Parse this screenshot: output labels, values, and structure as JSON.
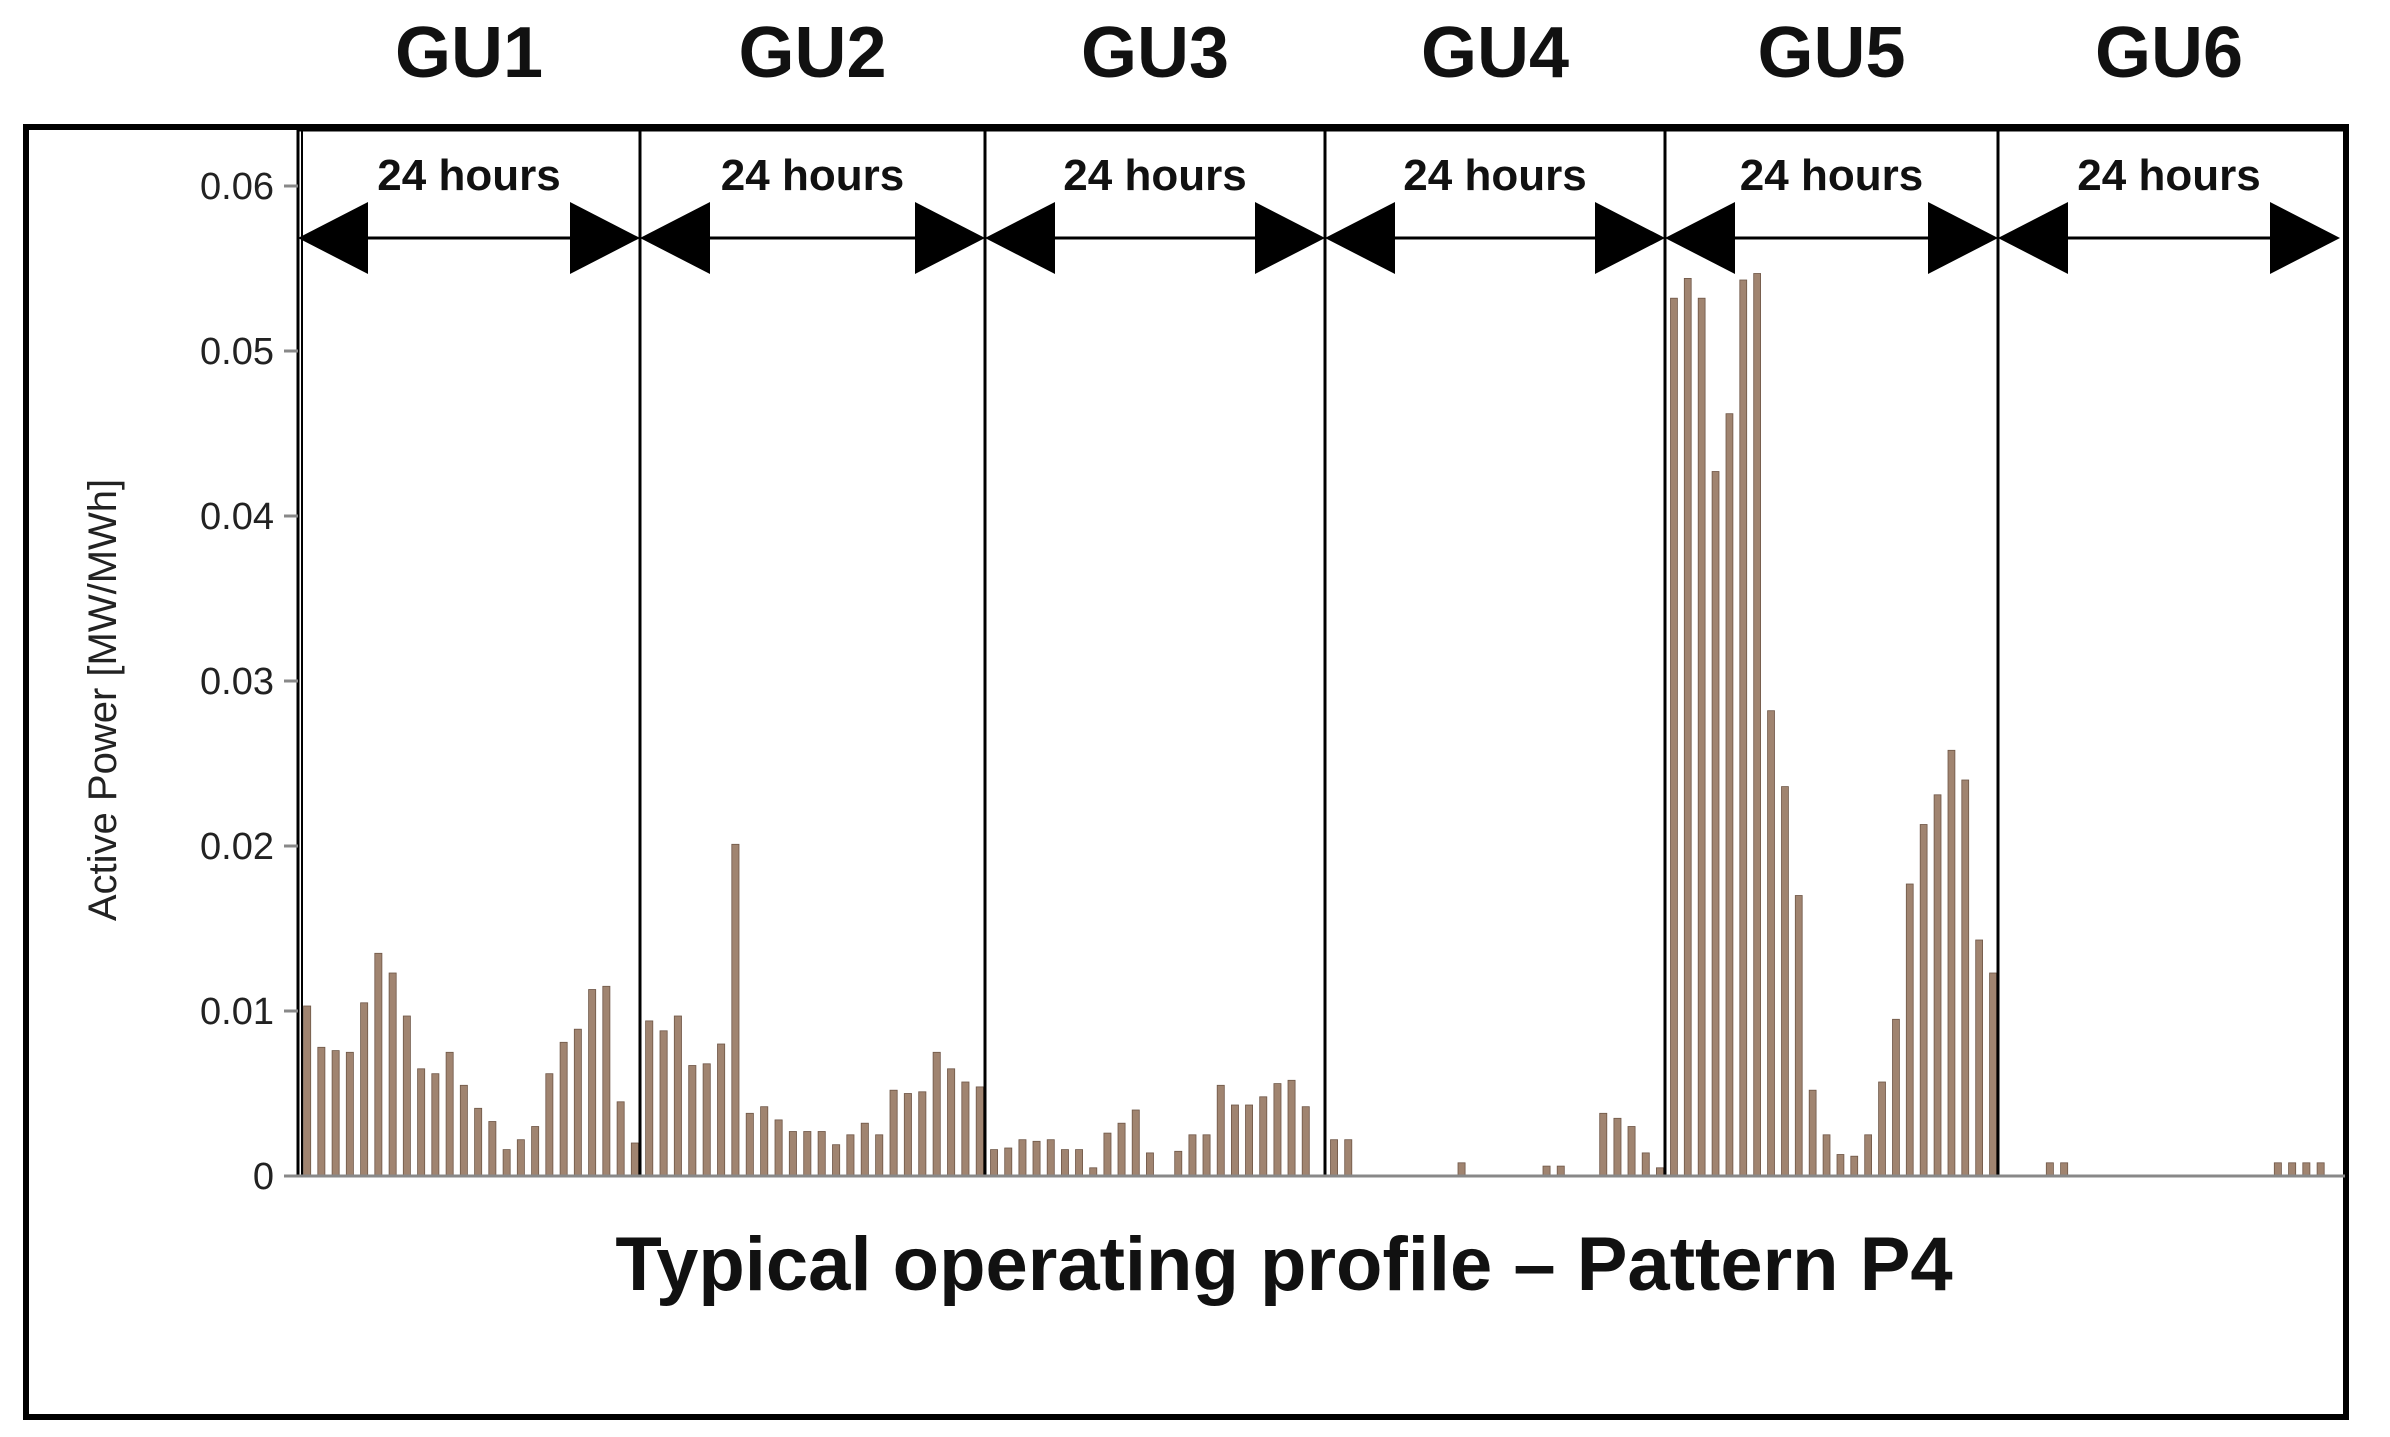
{
  "chart_data": {
    "type": "bar",
    "title": "Typical operating profile – Pattern P4",
    "ylabel": "Active Power  [MW/MWh]",
    "ylim": [
      0,
      0.06
    ],
    "yticks": [
      "0",
      "0.01",
      "0.02",
      "0.03",
      "0.04",
      "0.05",
      "0.06"
    ],
    "ytick_values": [
      0,
      0.01,
      0.02,
      0.03,
      0.04,
      0.05,
      0.06
    ],
    "segment_label": "24 hours",
    "bar_color": "#a08470",
    "groups": [
      {
        "name": "GU1",
        "values": [
          0.0103,
          0.0078,
          0.0076,
          0.0075,
          0.0105,
          0.0135,
          0.0123,
          0.0097,
          0.0065,
          0.0062,
          0.0075,
          0.0055,
          0.0041,
          0.0033,
          0.0016,
          0.0022,
          0.003,
          0.0062,
          0.0081,
          0.0089,
          0.0113,
          0.0115,
          0.0045,
          0.002
        ]
      },
      {
        "name": "GU2",
        "values": [
          0.0094,
          0.0088,
          0.0097,
          0.0067,
          0.0068,
          0.008,
          0.0201,
          0.0038,
          0.0042,
          0.0034,
          0.0027,
          0.0027,
          0.0027,
          0.0019,
          0.0025,
          0.0032,
          0.0025,
          0.0052,
          0.005,
          0.0051,
          0.0075,
          0.0065,
          0.0057,
          0.0054
        ]
      },
      {
        "name": "GU3",
        "values": [
          0.0016,
          0.0017,
          0.0022,
          0.0021,
          0.0022,
          0.0016,
          0.0016,
          0.0005,
          0.0026,
          0.0032,
          0.004,
          0.0014,
          0.0,
          0.0015,
          0.0025,
          0.0025,
          0.0055,
          0.0043,
          0.0043,
          0.0048,
          0.0056,
          0.0058,
          0.0042,
          0.0
        ]
      },
      {
        "name": "GU4",
        "values": [
          0.0022,
          0.0022,
          0,
          0,
          0,
          0,
          0,
          0,
          0,
          0.0008,
          0,
          0,
          0,
          0,
          0,
          0.0006,
          0.0006,
          0,
          0,
          0.0038,
          0.0035,
          0.003,
          0.0014,
          0.0005
        ]
      },
      {
        "name": "GU5",
        "values": [
          0.0532,
          0.0544,
          0.0532,
          0.0427,
          0.0462,
          0.0543,
          0.0547,
          0.0282,
          0.0236,
          0.017,
          0.0052,
          0.0025,
          0.0013,
          0.0012,
          0.0025,
          0.0057,
          0.0095,
          0.0177,
          0.0213,
          0.0231,
          0.0258,
          0.024,
          0.0143,
          0.0123
        ]
      },
      {
        "name": "GU6",
        "values": [
          0,
          0,
          0,
          0.0008,
          0.0008,
          0,
          0,
          0,
          0,
          0,
          0,
          0,
          0,
          0,
          0,
          0,
          0,
          0,
          0,
          0.0008,
          0.0008,
          0.0008,
          0.0008,
          0
        ]
      }
    ]
  }
}
